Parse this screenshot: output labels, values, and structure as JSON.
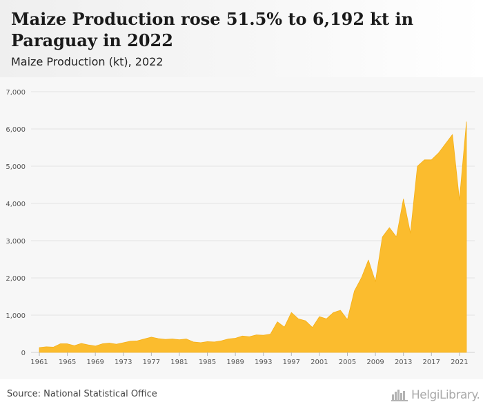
{
  "header": {
    "title": "Maize Production rose 51.5% to 6,192 kt in Paraguay in 2022",
    "subtitle": "Maize Production (kt), 2022"
  },
  "footer": {
    "source": "Source: National Statistical Office",
    "brand": "HelgiLibrary."
  },
  "colors": {
    "area": "#fbbc2e",
    "area_line": "#f5b019",
    "grid": "#e3e3e3",
    "axis_text": "#555555"
  },
  "icons": {
    "brand_mark": "bar-chart-icon"
  },
  "chart_data": {
    "type": "area",
    "title": "Maize Production (kt), 2022",
    "xlabel": "",
    "ylabel": "",
    "ylim": [
      0,
      7000
    ],
    "yticks": [
      0,
      1000,
      2000,
      3000,
      4000,
      5000,
      6000,
      7000
    ],
    "ytick_labels": [
      "0",
      "1,000",
      "2,000",
      "3,000",
      "4,000",
      "5,000",
      "6,000",
      "7,000"
    ],
    "xlim": [
      1961,
      2022
    ],
    "xticks": [
      1961,
      1965,
      1969,
      1973,
      1977,
      1981,
      1985,
      1989,
      1993,
      1997,
      2001,
      2005,
      2009,
      2013,
      2017,
      2021
    ],
    "grid": true,
    "x": [
      1961,
      1962,
      1963,
      1964,
      1965,
      1966,
      1967,
      1968,
      1969,
      1970,
      1971,
      1972,
      1973,
      1974,
      1975,
      1976,
      1977,
      1978,
      1979,
      1980,
      1981,
      1982,
      1983,
      1984,
      1985,
      1986,
      1987,
      1988,
      1989,
      1990,
      1991,
      1992,
      1993,
      1994,
      1995,
      1996,
      1997,
      1998,
      1999,
      2000,
      2001,
      2002,
      2003,
      2004,
      2005,
      2006,
      2007,
      2008,
      2009,
      2010,
      2011,
      2012,
      2013,
      2014,
      2015,
      2016,
      2017,
      2018,
      2019,
      2020,
      2021,
      2022
    ],
    "series": [
      {
        "values": [
          130,
          150,
          140,
          230,
          230,
          180,
          240,
          200,
          170,
          230,
          250,
          220,
          260,
          300,
          310,
          360,
          410,
          370,
          350,
          360,
          340,
          360,
          280,
          260,
          290,
          280,
          310,
          360,
          380,
          440,
          420,
          470,
          460,
          490,
          820,
          680,
          1070,
          900,
          850,
          670,
          960,
          900,
          1070,
          1130,
          880,
          1650,
          2000,
          2480,
          1900,
          3100,
          3350,
          3100,
          4120,
          3200,
          5000,
          5170,
          5170,
          5350,
          5600,
          5850,
          4090,
          6192
        ]
      }
    ]
  }
}
